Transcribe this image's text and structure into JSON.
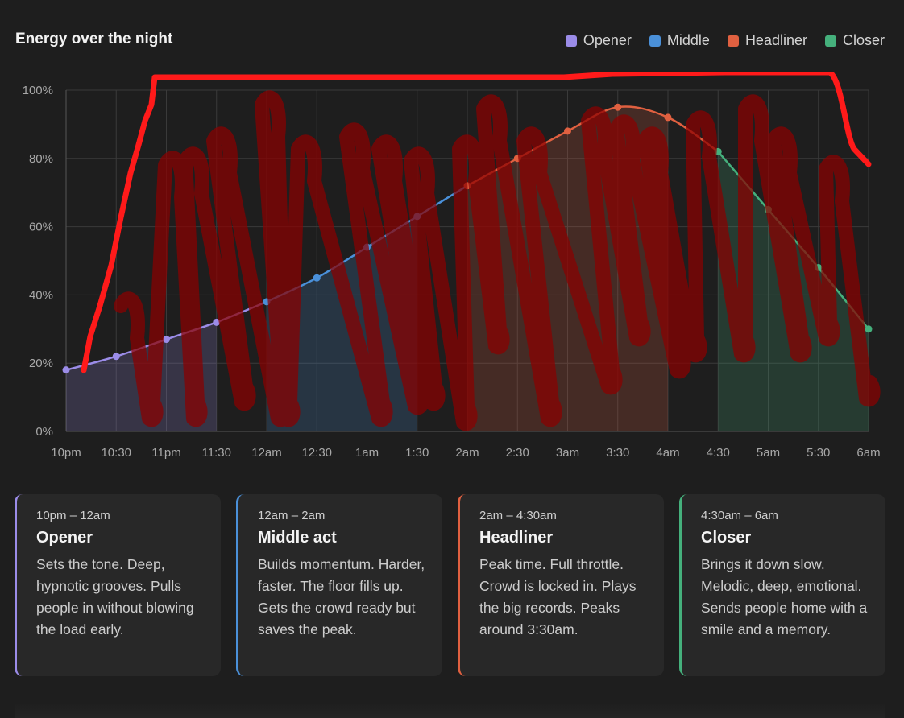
{
  "colors": {
    "opener": "#9b8ce8",
    "middle": "#4a90d9",
    "headliner": "#e06040",
    "closer": "#45b07c",
    "grid": "#3a3a3a",
    "axis_text": "#a8a8a8"
  },
  "chart_data": {
    "type": "line",
    "title": "Energy over the night",
    "xlabel": "",
    "ylabel": "",
    "ylim": [
      0,
      100
    ],
    "yticks": [
      "0%",
      "20%",
      "40%",
      "60%",
      "80%",
      "100%"
    ],
    "x": [
      "10pm",
      "10:30",
      "11pm",
      "11:30",
      "12am",
      "12:30",
      "1am",
      "1:30",
      "2am",
      "2:30",
      "3am",
      "3:30",
      "4am",
      "4:30",
      "5am",
      "5:30",
      "6am"
    ],
    "values": [
      18,
      22,
      27,
      32,
      38,
      45,
      54,
      63,
      72,
      80,
      88,
      95,
      92,
      82,
      65,
      48,
      30
    ],
    "grid": true,
    "legend_position": "top-right",
    "series": [
      {
        "name": "Opener",
        "color_key": "opener",
        "start": 0,
        "end": 3
      },
      {
        "name": "Middle",
        "color_key": "middle",
        "start": 4,
        "end": 7
      },
      {
        "name": "Headliner",
        "color_key": "headliner",
        "start": 8,
        "end": 12
      },
      {
        "name": "Closer",
        "color_key": "closer",
        "start": 13,
        "end": 16
      }
    ]
  },
  "cards": [
    {
      "time": "10pm – 12am",
      "name": "Opener",
      "color_key": "opener",
      "desc": "Sets the tone. Deep, hypnotic grooves. Pulls people in without blowing the load early."
    },
    {
      "time": "12am – 2am",
      "name": "Middle act",
      "color_key": "middle",
      "desc": "Builds momentum. Harder, faster. The floor fills up. Gets the crowd ready but saves the peak."
    },
    {
      "time": "2am – 4:30am",
      "name": "Headliner",
      "color_key": "headliner",
      "desc": "Peak time. Full throttle. Crowd is locked in. Plays the big records. Peaks around 3:30am."
    },
    {
      "time": "4:30am – 6am",
      "name": "Closer",
      "color_key": "closer",
      "desc": "Brings it down slow. Melodic, deep, emotional. Sends people home with a smile and a memory."
    }
  ]
}
